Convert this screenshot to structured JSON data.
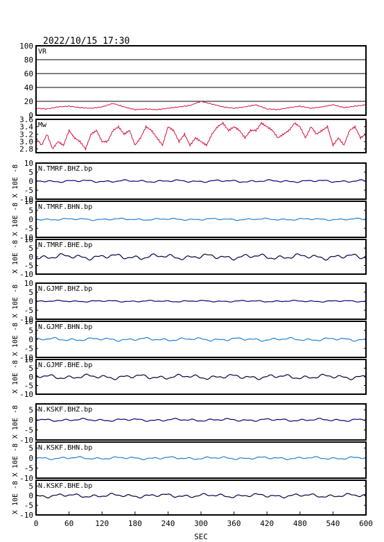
{
  "title": "2022/10/15  17:30",
  "colors": {
    "vr": "#d6103c",
    "mw": "#d6103c",
    "bhz": "#00007a",
    "bhn": "#1f7fd6",
    "bhe": "#000040",
    "frame": "#000000",
    "grid": "#000000"
  },
  "chart_data": {
    "type": "line",
    "x_axis": {
      "label": "SEC",
      "range": [
        0,
        600
      ],
      "ticks": [
        "0",
        "60",
        "120",
        "180",
        "240",
        "300",
        "360",
        "420",
        "480",
        "540",
        "600"
      ]
    },
    "panels": [
      {
        "label": "VR",
        "yticks": [
          "100",
          "80",
          "60",
          "40",
          "20",
          "0"
        ],
        "ylim": [
          0,
          100
        ],
        "grid": true,
        "color_key": "vr",
        "series": {
          "x": [
            0,
            20,
            40,
            60,
            80,
            100,
            120,
            140,
            160,
            180,
            200,
            220,
            240,
            260,
            280,
            300,
            320,
            340,
            360,
            380,
            400,
            420,
            440,
            460,
            480,
            500,
            520,
            540,
            560,
            580,
            600
          ],
          "values": [
            10,
            9,
            12,
            13,
            11,
            10,
            12,
            17,
            12,
            8,
            9,
            8,
            10,
            12,
            14,
            20,
            16,
            12,
            10,
            12,
            15,
            9,
            8,
            11,
            13,
            10,
            12,
            15,
            11,
            13,
            15
          ]
        }
      },
      {
        "label": "Mw",
        "yticks": [
          "3.6",
          "3.4",
          "3.2",
          "3.0",
          "2.8"
        ],
        "ylim": [
          2.7,
          3.6
        ],
        "grid": false,
        "color_key": "mw",
        "series": {
          "x": [
            0,
            10,
            20,
            30,
            40,
            50,
            60,
            70,
            80,
            90,
            100,
            110,
            120,
            130,
            140,
            150,
            160,
            170,
            180,
            190,
            200,
            210,
            220,
            230,
            240,
            250,
            260,
            270,
            280,
            290,
            300,
            310,
            320,
            330,
            340,
            350,
            360,
            370,
            380,
            390,
            400,
            410,
            420,
            430,
            440,
            450,
            460,
            470,
            480,
            490,
            500,
            510,
            520,
            530,
            540,
            550,
            560,
            570,
            580,
            590,
            600
          ],
          "values": [
            3.1,
            2.9,
            3.2,
            2.8,
            3.0,
            2.9,
            3.3,
            3.1,
            3.0,
            2.8,
            3.2,
            3.3,
            3.0,
            3.0,
            3.3,
            3.4,
            3.2,
            3.3,
            2.9,
            3.1,
            3.4,
            3.3,
            3.1,
            2.9,
            3.4,
            3.3,
            3.0,
            3.2,
            2.9,
            3.1,
            3.0,
            2.9,
            3.2,
            3.4,
            3.5,
            3.3,
            3.4,
            3.3,
            3.1,
            3.3,
            3.3,
            3.5,
            3.4,
            3.3,
            3.1,
            3.2,
            3.3,
            3.5,
            3.4,
            3.1,
            3.4,
            3.2,
            3.3,
            3.4,
            2.9,
            3.1,
            2.9,
            3.3,
            3.4,
            3.1,
            3.2
          ]
        }
      },
      {
        "label": "N.TMRF.BHZ.bp",
        "yticks": [
          "10",
          "5",
          "0",
          "-5",
          "-10"
        ],
        "ylim": [
          -10,
          10
        ],
        "color_key": "bhz",
        "amplitude": 0.6
      },
      {
        "label": "N.TMRF.BHN.bp",
        "yticks": [
          "10",
          "5",
          "0",
          "-5",
          "-10"
        ],
        "ylim": [
          -10,
          10
        ],
        "color_key": "bhn",
        "amplitude": 0.5
      },
      {
        "label": "N.TMRF.BHE.bp",
        "yticks": [
          "10",
          "5",
          "0",
          "-5",
          "-10"
        ],
        "ylim": [
          -10,
          10
        ],
        "color_key": "bhe",
        "amplitude": 1.4
      },
      {
        "label": "N.GJMF.BHZ.bp",
        "yticks": [
          "10",
          "5",
          "0",
          "-5",
          "-10"
        ],
        "ylim": [
          -10,
          10
        ],
        "color_key": "bhz",
        "amplitude": 0.4
      },
      {
        "label": "N.GJMF.BHN.bp",
        "yticks": [
          "10",
          "5",
          "0",
          "-5",
          "-10"
        ],
        "ylim": [
          -10,
          10
        ],
        "color_key": "bhn",
        "amplitude": 0.8
      },
      {
        "label": "N.GJMF.BHE.bp",
        "yticks": [
          "10",
          "5",
          "0",
          "-5",
          "-10"
        ],
        "ylim": [
          -10,
          10
        ],
        "color_key": "bhe",
        "amplitude": 1.2
      },
      {
        "label": "N.KSKF.BHZ.bp",
        "yticks": [
          "5",
          "0",
          "-5",
          "-10"
        ],
        "ylim": [
          -10,
          8
        ],
        "color_key": "bhz",
        "amplitude": 0.6
      },
      {
        "label": "N.KSKF.BHN.bp",
        "yticks": [
          "5",
          "0",
          "-5",
          "-10"
        ],
        "ylim": [
          -10,
          8
        ],
        "color_key": "bhn",
        "amplitude": 0.6
      },
      {
        "label": "N.KSKF.BHE.bp",
        "yticks": [
          "5",
          "0",
          "-5",
          "-10"
        ],
        "ylim": [
          -10,
          8
        ],
        "color_key": "bhe",
        "amplitude": 0.9
      }
    ],
    "unit_label": "X 10E -8"
  }
}
